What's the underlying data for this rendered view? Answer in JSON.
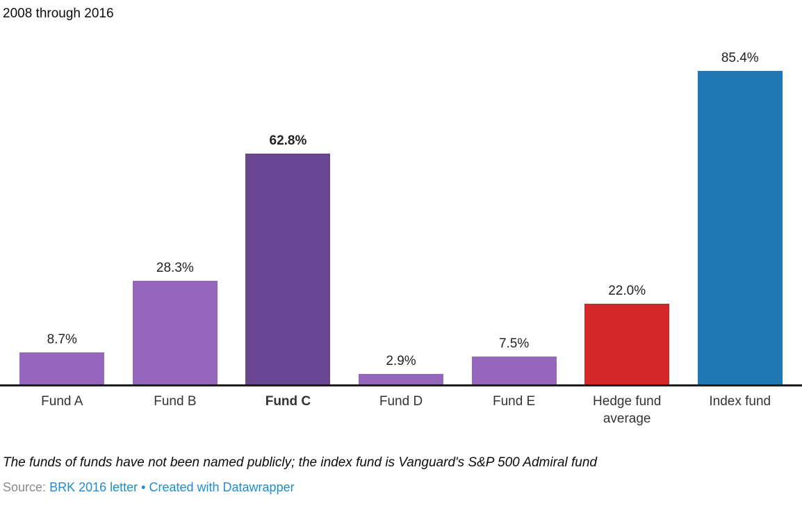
{
  "title": "2008 through 2016",
  "chart_data": {
    "type": "bar",
    "title": "2008 through 2016",
    "categories": [
      "Fund A",
      "Fund B",
      "Fund C",
      "Fund D",
      "Fund E",
      "Hedge fund average",
      "Index fund"
    ],
    "values": [
      8.7,
      28.3,
      62.8,
      2.9,
      7.5,
      22.0,
      85.4
    ],
    "value_labels": [
      "8.7%",
      "28.3%",
      "62.8%",
      "2.9%",
      "7.5%",
      "22.0%",
      "85.4%"
    ],
    "emphasized": [
      false,
      false,
      true,
      false,
      false,
      false,
      false
    ],
    "bar_colors": [
      "#9467bd",
      "#9467bd",
      "#6a4594",
      "#9467bd",
      "#9467bd",
      "#d62728",
      "#1f77b4"
    ],
    "xlabel": "",
    "ylabel": "",
    "ylim": [
      0,
      87
    ],
    "grid": false,
    "legend": "none",
    "orientation": "vertical",
    "baseline_color": "#1d1d1d"
  },
  "footer": {
    "note": "The funds of funds have not been named publicly; the index fund is Vanguard's S&P 500 Admiral fund",
    "source_label": "Source:",
    "source_link": "BRK 2016 letter",
    "separator": "•",
    "attribution": "Created with Datawrapper"
  },
  "colors": {
    "purple_light": "#9467bd",
    "purple_dark": "#6a4594",
    "red": "#d62728",
    "blue": "#1f77b4",
    "axis": "#1d1d1d",
    "label_text": "#333333",
    "link_blue": "#1e8cd3",
    "source_gray": "#8a8a8a"
  }
}
